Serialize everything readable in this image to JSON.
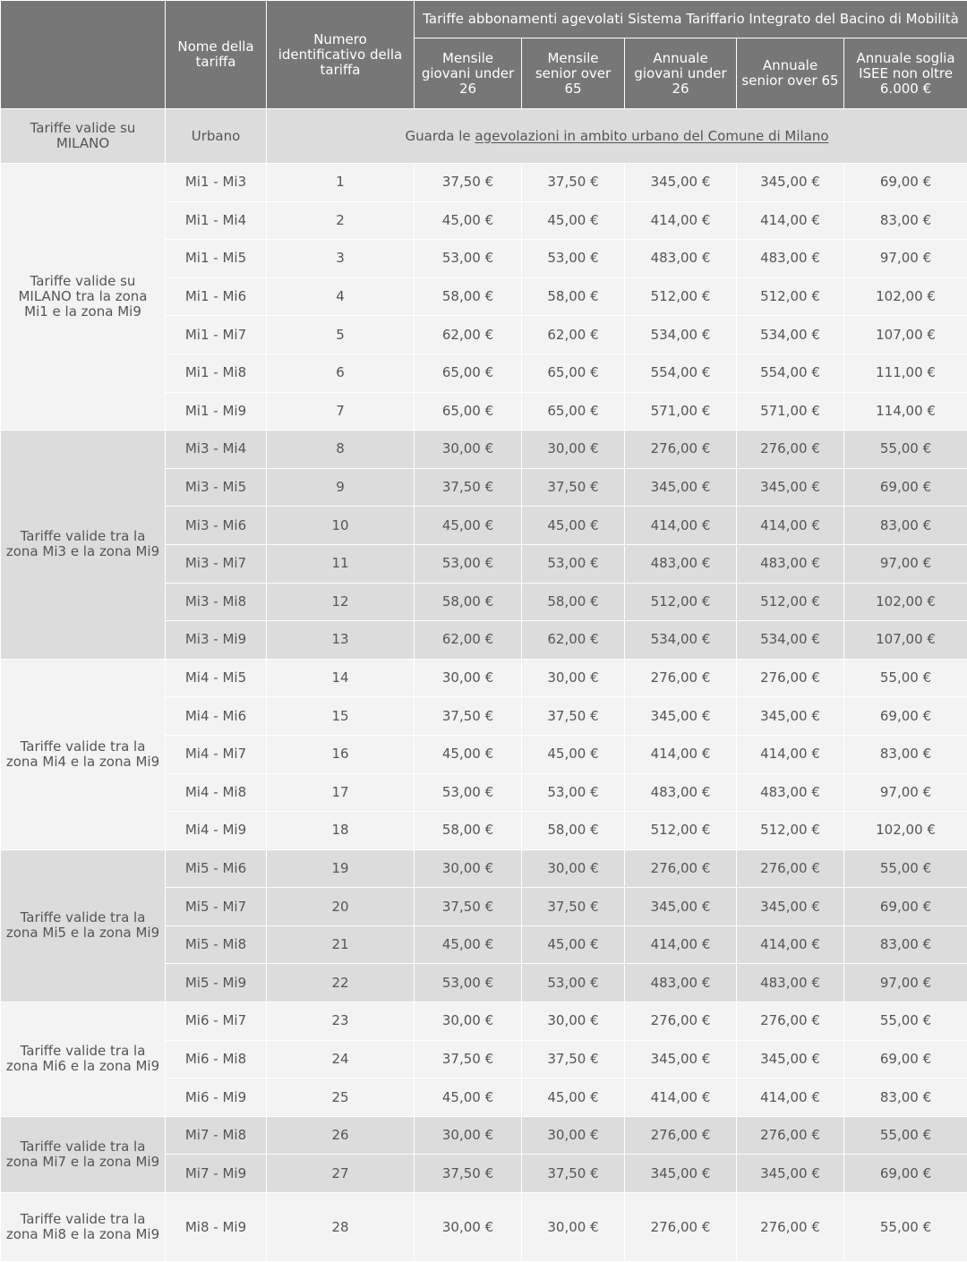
{
  "header": {
    "nome_label": "Nome della tariffa",
    "numero_label": "Numero identificativo della tariffa",
    "group_label": "Tariffe abbonamenti agevolati Sistema Tariffario Integrato del Bacino di Mobilità",
    "columns": [
      "Mensile giovani under 26",
      "Mensile senior over 65",
      "Annuale giovani under 26",
      "Annuale senior over 65",
      "Annuale soglia ISEE non oltre 6.000 €"
    ]
  },
  "urban": {
    "label": "Tariffe valide su MILANO",
    "name": "Urbano",
    "text_prefix": "Guarda le ",
    "link_text": "agevolazioni in ambito urbano del Comune di Milano"
  },
  "groups": [
    {
      "label": "Tariffe valide su MILANO tra la zona Mi1 e la zona Mi9",
      "rows": [
        [
          "Mi1 - Mi3",
          "1",
          "37,50 €",
          "37,50 €",
          "345,00 €",
          "345,00 €",
          "69,00 €"
        ],
        [
          "Mi1 - Mi4",
          "2",
          "45,00 €",
          "45,00 €",
          "414,00 €",
          "414,00 €",
          "83,00 €"
        ],
        [
          "Mi1 - Mi5",
          "3",
          "53,00 €",
          "53,00 €",
          "483,00 €",
          "483,00 €",
          "97,00 €"
        ],
        [
          "Mi1 - Mi6",
          "4",
          "58,00 €",
          "58,00 €",
          "512,00 €",
          "512,00 €",
          "102,00 €"
        ],
        [
          "Mi1 - Mi7",
          "5",
          "62,00 €",
          "62,00 €",
          "534,00 €",
          "534,00 €",
          "107,00 €"
        ],
        [
          "Mi1 - Mi8",
          "6",
          "65,00 €",
          "65,00 €",
          "554,00 €",
          "554,00 €",
          "111,00 €"
        ],
        [
          "Mi1 - Mi9",
          "7",
          "65,00 €",
          "65,00 €",
          "571,00 €",
          "571,00 €",
          "114,00 €"
        ]
      ]
    },
    {
      "label": "Tariffe valide tra la zona Mi3 e la zona Mi9",
      "rows": [
        [
          "Mi3 - Mi4",
          "8",
          "30,00 €",
          "30,00 €",
          "276,00 €",
          "276,00 €",
          "55,00 €"
        ],
        [
          "Mi3 - Mi5",
          "9",
          "37,50 €",
          "37,50 €",
          "345,00 €",
          "345,00 €",
          "69,00 €"
        ],
        [
          "Mi3 - Mi6",
          "10",
          "45,00 €",
          "45,00 €",
          "414,00 €",
          "414,00 €",
          "83,00 €"
        ],
        [
          "Mi3 - Mi7",
          "11",
          "53,00 €",
          "53,00 €",
          "483,00 €",
          "483,00 €",
          "97,00 €"
        ],
        [
          "Mi3 - Mi8",
          "12",
          "58,00 €",
          "58,00 €",
          "512,00 €",
          "512,00 €",
          "102,00 €"
        ],
        [
          "Mi3 - Mi9",
          "13",
          "62,00 €",
          "62,00 €",
          "534,00 €",
          "534,00 €",
          "107,00 €"
        ]
      ]
    },
    {
      "label": "Tariffe valide tra la zona Mi4 e la zona Mi9",
      "rows": [
        [
          "Mi4 - Mi5",
          "14",
          "30,00 €",
          "30,00 €",
          "276,00 €",
          "276,00 €",
          "55,00 €"
        ],
        [
          "Mi4 - Mi6",
          "15",
          "37,50 €",
          "37,50 €",
          "345,00 €",
          "345,00 €",
          "69,00 €"
        ],
        [
          "Mi4 - Mi7",
          "16",
          "45,00 €",
          "45,00 €",
          "414,00 €",
          "414,00 €",
          "83,00 €"
        ],
        [
          "Mi4 - Mi8",
          "17",
          "53,00 €",
          "53,00 €",
          "483,00 €",
          "483,00 €",
          "97,00 €"
        ],
        [
          "Mi4 - Mi9",
          "18",
          "58,00 €",
          "58,00 €",
          "512,00 €",
          "512,00 €",
          "102,00 €"
        ]
      ]
    },
    {
      "label": "Tariffe valide tra la zona Mi5 e la zona Mi9",
      "rows": [
        [
          "Mi5 - Mi6",
          "19",
          "30,00 €",
          "30,00 €",
          "276,00 €",
          "276,00 €",
          "55,00 €"
        ],
        [
          "Mi5 - Mi7",
          "20",
          "37,50 €",
          "37,50 €",
          "345,00 €",
          "345,00 €",
          "69,00 €"
        ],
        [
          "Mi5 - Mi8",
          "21",
          "45,00 €",
          "45,00 €",
          "414,00 €",
          "414,00 €",
          "83,00 €"
        ],
        [
          "Mi5 - Mi9",
          "22",
          "53,00 €",
          "53,00 €",
          "483,00 €",
          "483,00 €",
          "97,00 €"
        ]
      ]
    },
    {
      "label": "Tariffe valide tra la zona Mi6 e la zona Mi9",
      "rows": [
        [
          "Mi6 - Mi7",
          "23",
          "30,00 €",
          "30,00 €",
          "276,00 €",
          "276,00 €",
          "55,00 €"
        ],
        [
          "Mi6 - Mi8",
          "24",
          "37,50 €",
          "37,50 €",
          "345,00 €",
          "345,00 €",
          "69,00 €"
        ],
        [
          "Mi6 - Mi9",
          "25",
          "45,00 €",
          "45,00 €",
          "414,00 €",
          "414,00 €",
          "83,00 €"
        ]
      ]
    },
    {
      "label": "Tariffe valide tra la zona Mi7 e la zona Mi9",
      "rows": [
        [
          "Mi7 - Mi8",
          "26",
          "30,00 €",
          "30,00 €",
          "276,00 €",
          "276,00 €",
          "55,00 €"
        ],
        [
          "Mi7 - Mi9",
          "27",
          "37,50 €",
          "37,50 €",
          "345,00 €",
          "345,00 €",
          "69,00 €"
        ]
      ]
    },
    {
      "label": "Tariffe valide tra la zona Mi8 e la zona Mi9",
      "rows": [
        [
          "Mi8 - Mi9",
          "28",
          "30,00 €",
          "30,00 €",
          "276,00 €",
          "276,00 €",
          "55,00 €"
        ]
      ]
    }
  ]
}
